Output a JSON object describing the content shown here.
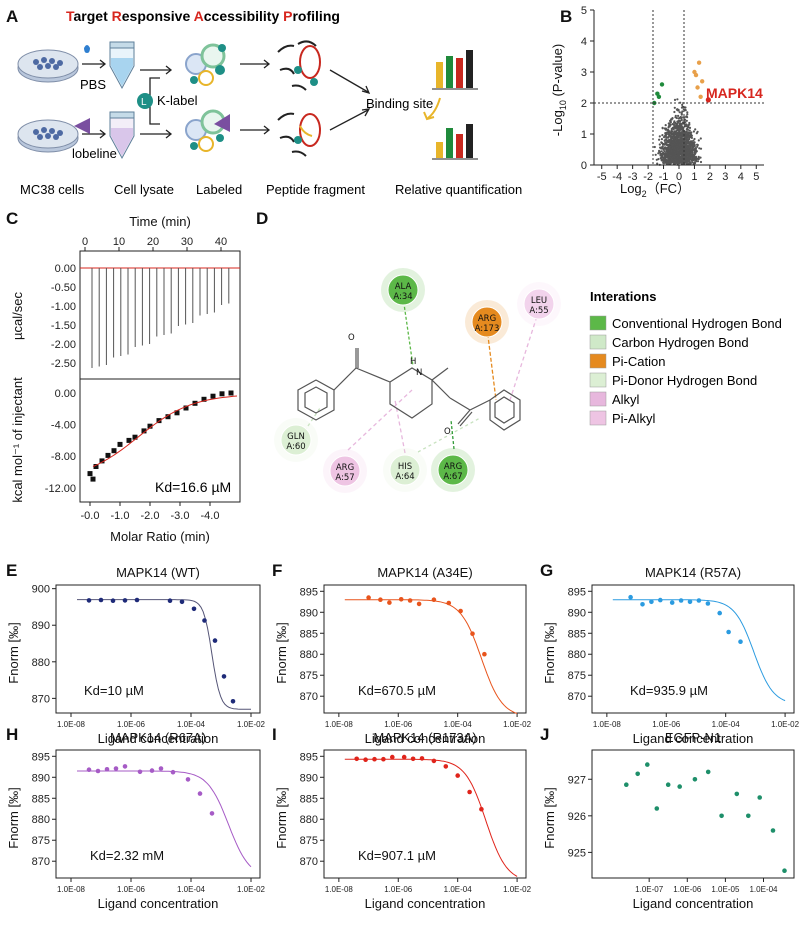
{
  "panel_labels": {
    "A": "A",
    "B": "B",
    "C": "C",
    "D": "D",
    "E": "E",
    "F": "F",
    "G": "G",
    "H": "H",
    "I": "I",
    "J": "J"
  },
  "panel_a": {
    "title_words": [
      {
        "initial": "T",
        "rest": "arget "
      },
      {
        "initial": "R",
        "rest": "esponsive "
      },
      {
        "initial": "A",
        "rest": "ccessibility "
      },
      {
        "initial": "P",
        "rest": "rofiling"
      }
    ],
    "pbs": "PBS",
    "lobeline": "lobeline",
    "k_label": "K-label",
    "k_letter": "L",
    "binding_site": "Binding site",
    "steps": [
      "MC38 cells",
      "Cell lysate",
      "Labeled",
      "Peptide fragment",
      "Relative quantification"
    ],
    "colors": {
      "accent_red": "#d7261e",
      "bar_yellow": "#e8b52a",
      "bar_green": "#1f8a3b",
      "bar_red": "#c8281f",
      "bar_black": "#222222",
      "teal": "#1e8f86",
      "purple": "#7a4fa0"
    }
  },
  "panel_b": {
    "xlabel_prefix": "Log",
    "xlabel_sub": "2",
    "xlabel_suffix": "（FC）",
    "ylabel_prefix": "-Log",
    "ylabel_sub": "10",
    "ylabel_suffix": " (P-value)",
    "x_ticks": [
      "-5",
      "-4",
      "-3",
      "-2",
      "-1",
      "0",
      "1",
      "2",
      "3",
      "4",
      "5"
    ],
    "y_ticks": [
      "0",
      "1",
      "2",
      "3",
      "4",
      "5"
    ],
    "highlight": "MAPK14",
    "highlight_color": "#d7261e"
  },
  "panel_c": {
    "top_xlabel": "Time (min)",
    "top_xticks": [
      "0",
      "10",
      "20",
      "30",
      "40"
    ],
    "top_ylabel": "µcal/sec",
    "top_yticks": [
      "0.00",
      "-0.50",
      "-1.00",
      "-1.50",
      "-2.00",
      "-2.50"
    ],
    "bottom_ylabel": "kcal mol⁻¹ of injectant",
    "bottom_yticks": [
      "0.00",
      "-4.00",
      "-8.00",
      "-12.00"
    ],
    "bottom_xlabel": "Molar Ratio (min)",
    "bottom_xticks": [
      "-0.0",
      "-1.0",
      "-2.0",
      "-3.0",
      "-4.0"
    ],
    "kd": "Kd=16.6 µM"
  },
  "panel_d": {
    "legend_title": "Interations",
    "legend": [
      {
        "label": "Conventional Hydrogen Bond",
        "color": "#5cb848"
      },
      {
        "label": "Carbon Hydrogen Bond",
        "color": "#cfe9c8"
      },
      {
        "label": "Pi-Cation",
        "color": "#e58a1f"
      },
      {
        "label": "Pi-Donor Hydrogen Bond",
        "color": "#dcefd4"
      },
      {
        "label": "Alkyl",
        "color": "#e7b7dd"
      },
      {
        "label": "Pi-Alkyl",
        "color": "#eec4e3"
      }
    ],
    "residues": [
      {
        "name": "ALA",
        "id": "A:34",
        "color": "#5cb848"
      },
      {
        "name": "ARG",
        "id": "A:173",
        "color": "#e58a1f"
      },
      {
        "name": "LEU",
        "id": "A:55",
        "color": "#f2d3ec"
      },
      {
        "name": "GLN",
        "id": "A:60",
        "color": "#dcefd4"
      },
      {
        "name": "ARG",
        "id": "A:57",
        "color": "#eec4e3"
      },
      {
        "name": "HIS",
        "id": "A:64",
        "color": "#dcefd4"
      },
      {
        "name": "ARG",
        "id": "A:67",
        "color": "#5cb848"
      }
    ],
    "atom_o": "O",
    "atom_h": "H",
    "atom_n": "N"
  },
  "mst_common": {
    "ylabel": "Fnorm [‰]",
    "xlabel": "Ligand concentration",
    "x_ticks": [
      "1.0E-08",
      "1.0E-06",
      "1.0E-04",
      "1.0E-02"
    ]
  },
  "mst_panels": [
    {
      "key": "E",
      "title": "MAPK14 (WT)",
      "kd": "Kd=10 µM",
      "color": "#1e2a78",
      "line": "#555577",
      "y_ticks": [
        "900",
        "890",
        "880",
        "870"
      ]
    },
    {
      "key": "F",
      "title": "MAPK14 (A34E)",
      "kd": "Kd=670.5 µM",
      "color": "#e8541c",
      "line": "#e8541c",
      "y_ticks": [
        "895",
        "890",
        "885",
        "880",
        "875",
        "870"
      ]
    },
    {
      "key": "G",
      "title": "MAPK14 (R57A)",
      "kd": "Kd=935.9 µM",
      "color": "#2b9be0",
      "line": "#2b9be0",
      "y_ticks": [
        "895",
        "890",
        "885",
        "880",
        "875",
        "870"
      ]
    },
    {
      "key": "H",
      "title": "MAPK14 (R67A)",
      "kd": "Kd=2.32 mM",
      "color": "#a65bc6",
      "line": "#a65bc6",
      "y_ticks": [
        "895",
        "890",
        "885",
        "880",
        "875",
        "870"
      ]
    },
    {
      "key": "I",
      "title": "MAPK14 (R173A)",
      "kd": "Kd=907.1 µM",
      "color": "#e0241b",
      "line": "#e0241b",
      "y_ticks": [
        "895",
        "890",
        "885",
        "880",
        "875",
        "870"
      ]
    },
    {
      "key": "J",
      "title": "EGFP-N1",
      "kd": "",
      "color": "#1e8f6a",
      "line": "",
      "y_ticks": [
        "927",
        "926",
        "925"
      ],
      "x_ticks": [
        "1.0E-07",
        "1.0E-06",
        "1.0E-05",
        "1.0E-04"
      ]
    }
  ]
}
